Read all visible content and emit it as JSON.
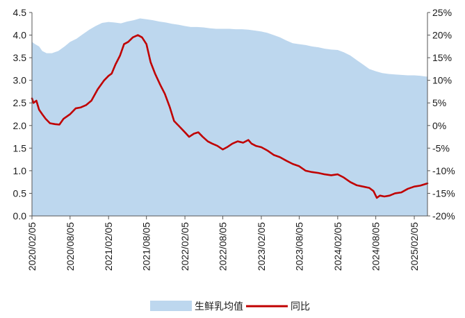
{
  "chart_data": {
    "type": "area",
    "x_tick_labels": [
      "2020/02/05",
      "2020/08/05",
      "2021/02/05",
      "2021/08/05",
      "2022/02/05",
      "2022/08/05",
      "2023/02/05",
      "2023/08/05",
      "2024/02/05",
      "2024/08/05",
      "2025/02/05"
    ],
    "x_range": [
      "2020/02/05",
      "2025/04/09"
    ],
    "left_axis": {
      "ylim": [
        0,
        4.5
      ],
      "tick_labels": [
        "0.0",
        "0.5",
        "1.0",
        "1.5",
        "2.0",
        "2.5",
        "3.0",
        "3.5",
        "4.0",
        "4.5"
      ]
    },
    "right_axis": {
      "ylim": [
        -20,
        25
      ],
      "tick_labels": [
        "-20%",
        "-15%",
        "-10%",
        "-5%",
        "0%",
        "5%",
        "10%",
        "15%",
        "20%",
        "25%"
      ]
    },
    "grid": false,
    "legend_position": "bottom",
    "series": [
      {
        "name": "生鲜乳均值",
        "type": "area",
        "axis": "left",
        "color": "#bdd7ee",
        "points": [
          [
            "2020/02/05",
            3.85
          ],
          [
            "2020/02/20",
            3.8
          ],
          [
            "2020/03/10",
            3.75
          ],
          [
            "2020/03/25",
            3.65
          ],
          [
            "2020/04/15",
            3.6
          ],
          [
            "2020/05/10",
            3.6
          ],
          [
            "2020/06/10",
            3.65
          ],
          [
            "2020/07/10",
            3.75
          ],
          [
            "2020/08/05",
            3.85
          ],
          [
            "2020/09/05",
            3.92
          ],
          [
            "2020/10/05",
            4.02
          ],
          [
            "2020/11/05",
            4.12
          ],
          [
            "2020/12/05",
            4.2
          ],
          [
            "2021/01/05",
            4.27
          ],
          [
            "2021/02/05",
            4.29
          ],
          [
            "2021/03/05",
            4.28
          ],
          [
            "2021/04/05",
            4.26
          ],
          [
            "2021/05/05",
            4.3
          ],
          [
            "2021/06/05",
            4.33
          ],
          [
            "2021/07/05",
            4.37
          ],
          [
            "2021/08/05",
            4.35
          ],
          [
            "2021/09/05",
            4.33
          ],
          [
            "2021/10/05",
            4.3
          ],
          [
            "2021/11/05",
            4.28
          ],
          [
            "2021/12/05",
            4.25
          ],
          [
            "2022/01/05",
            4.23
          ],
          [
            "2022/02/05",
            4.2
          ],
          [
            "2022/03/05",
            4.18
          ],
          [
            "2022/04/05",
            4.18
          ],
          [
            "2022/05/05",
            4.17
          ],
          [
            "2022/06/05",
            4.15
          ],
          [
            "2022/07/05",
            4.14
          ],
          [
            "2022/08/05",
            4.14
          ],
          [
            "2022/09/05",
            4.14
          ],
          [
            "2022/10/05",
            4.13
          ],
          [
            "2022/11/05",
            4.13
          ],
          [
            "2022/12/05",
            4.12
          ],
          [
            "2023/01/05",
            4.1
          ],
          [
            "2023/02/05",
            4.08
          ],
          [
            "2023/03/05",
            4.05
          ],
          [
            "2023/04/05",
            4.0
          ],
          [
            "2023/05/05",
            3.95
          ],
          [
            "2023/06/05",
            3.88
          ],
          [
            "2023/07/05",
            3.82
          ],
          [
            "2023/08/05",
            3.8
          ],
          [
            "2023/09/05",
            3.78
          ],
          [
            "2023/10/05",
            3.75
          ],
          [
            "2023/11/05",
            3.73
          ],
          [
            "2023/12/05",
            3.7
          ],
          [
            "2024/01/05",
            3.68
          ],
          [
            "2024/02/05",
            3.67
          ],
          [
            "2024/03/05",
            3.62
          ],
          [
            "2024/04/05",
            3.55
          ],
          [
            "2024/05/05",
            3.45
          ],
          [
            "2024/06/05",
            3.35
          ],
          [
            "2024/07/05",
            3.25
          ],
          [
            "2024/08/05",
            3.2
          ],
          [
            "2024/09/05",
            3.16
          ],
          [
            "2024/10/05",
            3.14
          ],
          [
            "2024/11/05",
            3.13
          ],
          [
            "2024/12/05",
            3.12
          ],
          [
            "2025/01/05",
            3.11
          ],
          [
            "2025/02/05",
            3.11
          ],
          [
            "2025/03/05",
            3.1
          ],
          [
            "2025/04/09",
            3.08
          ]
        ]
      },
      {
        "name": "同比",
        "type": "line",
        "axis": "right",
        "color": "#c00000",
        "points": [
          [
            "2020/02/05",
            6.0
          ],
          [
            "2020/02/12",
            5.0
          ],
          [
            "2020/02/26",
            5.5
          ],
          [
            "2020/03/10",
            3.5
          ],
          [
            "2020/03/25",
            2.5
          ],
          [
            "2020/04/10",
            1.5
          ],
          [
            "2020/05/01",
            0.5
          ],
          [
            "2020/05/25",
            0.3
          ],
          [
            "2020/06/15",
            0.2
          ],
          [
            "2020/07/05",
            1.5
          ],
          [
            "2020/08/05",
            2.5
          ],
          [
            "2020/09/01",
            3.8
          ],
          [
            "2020/09/25",
            4.0
          ],
          [
            "2020/10/20",
            4.5
          ],
          [
            "2020/11/15",
            5.5
          ],
          [
            "2020/12/15",
            8.0
          ],
          [
            "2021/01/15",
            10.0
          ],
          [
            "2021/02/05",
            11.0
          ],
          [
            "2021/02/20",
            11.5
          ],
          [
            "2021/03/10",
            13.5
          ],
          [
            "2021/04/01",
            15.5
          ],
          [
            "2021/04/20",
            18.0
          ],
          [
            "2021/05/10",
            18.5
          ],
          [
            "2021/06/01",
            19.5
          ],
          [
            "2021/06/25",
            20.0
          ],
          [
            "2021/07/15",
            19.5
          ],
          [
            "2021/08/05",
            18.0
          ],
          [
            "2021/08/25",
            14.0
          ],
          [
            "2021/09/15",
            11.5
          ],
          [
            "2021/10/10",
            9.0
          ],
          [
            "2021/11/01",
            7.0
          ],
          [
            "2021/11/25",
            4.0
          ],
          [
            "2021/12/15",
            1.0
          ],
          [
            "2022/01/05",
            0.0
          ],
          [
            "2022/02/05",
            -1.5
          ],
          [
            "2022/02/25",
            -2.5
          ],
          [
            "2022/03/20",
            -1.8
          ],
          [
            "2022/04/10",
            -1.5
          ],
          [
            "2022/05/01",
            -2.5
          ],
          [
            "2022/05/25",
            -3.5
          ],
          [
            "2022/06/15",
            -4.0
          ],
          [
            "2022/07/10",
            -4.5
          ],
          [
            "2022/08/05",
            -5.3
          ],
          [
            "2022/08/25",
            -4.8
          ],
          [
            "2022/09/20",
            -4.0
          ],
          [
            "2022/10/15",
            -3.5
          ],
          [
            "2022/11/10",
            -3.8
          ],
          [
            "2022/12/05",
            -3.2
          ],
          [
            "2022/12/20",
            -4.0
          ],
          [
            "2023/01/10",
            -4.5
          ],
          [
            "2023/02/05",
            -4.8
          ],
          [
            "2023/03/05",
            -5.5
          ],
          [
            "2023/04/05",
            -6.5
          ],
          [
            "2023/05/05",
            -7.0
          ],
          [
            "2023/06/05",
            -7.8
          ],
          [
            "2023/07/05",
            -8.5
          ],
          [
            "2023/08/05",
            -9.0
          ],
          [
            "2023/09/05",
            -10.0
          ],
          [
            "2023/10/05",
            -10.3
          ],
          [
            "2023/11/05",
            -10.5
          ],
          [
            "2023/12/05",
            -10.8
          ],
          [
            "2024/01/05",
            -11.0
          ],
          [
            "2024/02/05",
            -10.8
          ],
          [
            "2024/03/05",
            -11.5
          ],
          [
            "2024/04/05",
            -12.5
          ],
          [
            "2024/05/05",
            -13.2
          ],
          [
            "2024/06/05",
            -13.5
          ],
          [
            "2024/07/05",
            -13.8
          ],
          [
            "2024/07/25",
            -14.5
          ],
          [
            "2024/08/10",
            -16.0
          ],
          [
            "2024/08/25",
            -15.5
          ],
          [
            "2024/09/15",
            -15.7
          ],
          [
            "2024/10/10",
            -15.5
          ],
          [
            "2024/11/05",
            -15.0
          ],
          [
            "2024/12/05",
            -14.8
          ],
          [
            "2025/01/05",
            -14.0
          ],
          [
            "2025/02/05",
            -13.5
          ],
          [
            "2025/03/05",
            -13.3
          ],
          [
            "2025/04/09",
            -12.8
          ]
        ]
      }
    ],
    "legend": [
      "生鲜乳均值",
      "同比"
    ]
  }
}
